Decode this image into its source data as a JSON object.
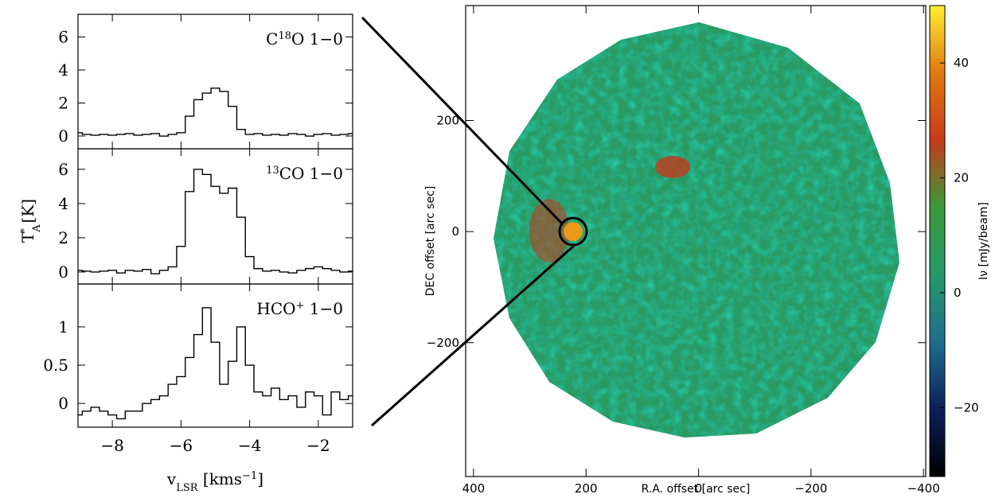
{
  "chart_data": [
    {
      "type": "step",
      "label": [
        {
          "text": "C"
        },
        {
          "sup": "18"
        },
        {
          "text": "O 1−0"
        }
      ],
      "x": [
        -9,
        -8.75,
        -8.5,
        -8.25,
        -8,
        -7.75,
        -7.5,
        -7.25,
        -7,
        -6.75,
        -6.5,
        -6.25,
        -6,
        -5.75,
        -5.5,
        -5.25,
        -5,
        -4.75,
        -4.5,
        -4.25,
        -4,
        -3.75,
        -3.5,
        -3.25,
        -3,
        -2.75,
        -2.5,
        -2.25,
        -2,
        -1.75,
        -1.5,
        -1.25,
        -1
      ],
      "values": [
        0.2,
        0.1,
        0.05,
        0.1,
        0.05,
        0.1,
        0.15,
        0.05,
        0.1,
        0.15,
        0,
        0.1,
        0.2,
        1.2,
        2.2,
        2.6,
        2.9,
        2.7,
        1.8,
        0.4,
        0.1,
        0.15,
        0.05,
        0.1,
        0.05,
        0.15,
        0.1,
        0,
        0.1,
        0.15,
        0.05,
        0.1,
        0.15
      ],
      "xlim": [
        -9,
        -1
      ],
      "ylim": [
        -0.77,
        7.37
      ],
      "yticks": [
        0,
        2,
        4,
        6
      ],
      "color": "#000000"
    },
    {
      "type": "step",
      "label": [
        {
          "sup": "13"
        },
        {
          "text": "CO 1−0"
        }
      ],
      "ylabel": [
        {
          "text": "T"
        },
        {
          "sub": "A"
        },
        {
          "sup": "*"
        },
        {
          "text": " [K]"
        }
      ],
      "x": [
        -9,
        -8.75,
        -8.5,
        -8.25,
        -8,
        -7.75,
        -7.5,
        -7.25,
        -7,
        -6.75,
        -6.5,
        -6.25,
        -6,
        -5.75,
        -5.5,
        -5.25,
        -5,
        -4.75,
        -4.5,
        -4.25,
        -4,
        -3.75,
        -3.5,
        -3.25,
        -3,
        -2.75,
        -2.5,
        -2.25,
        -2,
        -1.75,
        -1.5,
        -1.25,
        -1
      ],
      "values": [
        0.1,
        0.05,
        0,
        0.05,
        0.1,
        -0.05,
        0.1,
        0.05,
        0.15,
        -0.1,
        0.1,
        0.3,
        1.5,
        4.7,
        6.0,
        5.7,
        5.0,
        4.6,
        4.9,
        3.2,
        0.9,
        0.2,
        0.05,
        0.1,
        0,
        -0.05,
        0.1,
        0.2,
        0.3,
        0.2,
        0.1,
        0,
        0.05
      ],
      "xlim": [
        -9,
        -1
      ],
      "ylim": [
        -0.7,
        7.2
      ],
      "yticks": [
        0,
        2,
        4,
        6
      ],
      "color": "#000000"
    },
    {
      "type": "step",
      "label": [
        {
          "text": "HCO"
        },
        {
          "sup": "+"
        },
        {
          "text": " 1−0"
        }
      ],
      "xlabel": [
        {
          "text": "v"
        },
        {
          "sub": "LSR"
        },
        {
          "text": " [kms"
        },
        {
          "sup": "−1"
        },
        {
          "text": "]"
        }
      ],
      "x": [
        -9,
        -8.75,
        -8.5,
        -8.25,
        -8,
        -7.75,
        -7.5,
        -7.25,
        -7,
        -6.75,
        -6.5,
        -6.25,
        -6,
        -5.75,
        -5.5,
        -5.25,
        -5,
        -4.75,
        -4.5,
        -4.25,
        -4,
        -3.75,
        -3.5,
        -3.25,
        -3,
        -2.75,
        -2.5,
        -2.25,
        -2,
        -1.75,
        -1.5,
        -1.25,
        -1
      ],
      "values": [
        -0.15,
        -0.1,
        -0.05,
        -0.1,
        -0.15,
        -0.2,
        -0.1,
        -0.1,
        0,
        0.05,
        0.1,
        0.25,
        0.35,
        0.6,
        0.9,
        1.25,
        0.8,
        0.25,
        0.55,
        1.0,
        0.5,
        0.15,
        0.1,
        0.2,
        0.05,
        0.1,
        -0.05,
        0.15,
        0.1,
        -0.15,
        0.15,
        0.05,
        0.1
      ],
      "xlim": [
        -9,
        -1
      ],
      "xticks": [
        {
          "value": -8,
          "label": "−8"
        },
        {
          "value": -6,
          "label": "−6"
        },
        {
          "value": -4,
          "label": "−4"
        },
        {
          "value": -2,
          "label": "−2"
        }
      ],
      "ylim": [
        -0.31,
        1.56
      ],
      "yticks": [
        0,
        0.5,
        1
      ],
      "color": "#000000"
    },
    {
      "type": "image",
      "xlabel": "R.A. offset [arc sec]",
      "ylabel": "DEC offset [arc sec]",
      "xlim": [
        414,
        -404
      ],
      "xticks": [
        400,
        200,
        0,
        {
          "value": -200,
          "label": "−200"
        },
        {
          "value": -400,
          "label": "−400"
        }
      ],
      "ylim": [
        -441,
        407
      ],
      "yticks": [
        200,
        0,
        {
          "value": -200,
          "label": "−200"
        }
      ],
      "clabel": "Iν [mJy/beam]",
      "clim": [
        -32,
        50
      ],
      "cticks": [
        40,
        20,
        0,
        {
          "value": -20,
          "label": "−20"
        }
      ],
      "colormap": [
        "#000000",
        "#0b1f5c",
        "#1f6e8c",
        "#239a6a",
        "#3a9a3a",
        "#c83a1a",
        "#e07a10",
        "#ffee30"
      ]
    }
  ]
}
